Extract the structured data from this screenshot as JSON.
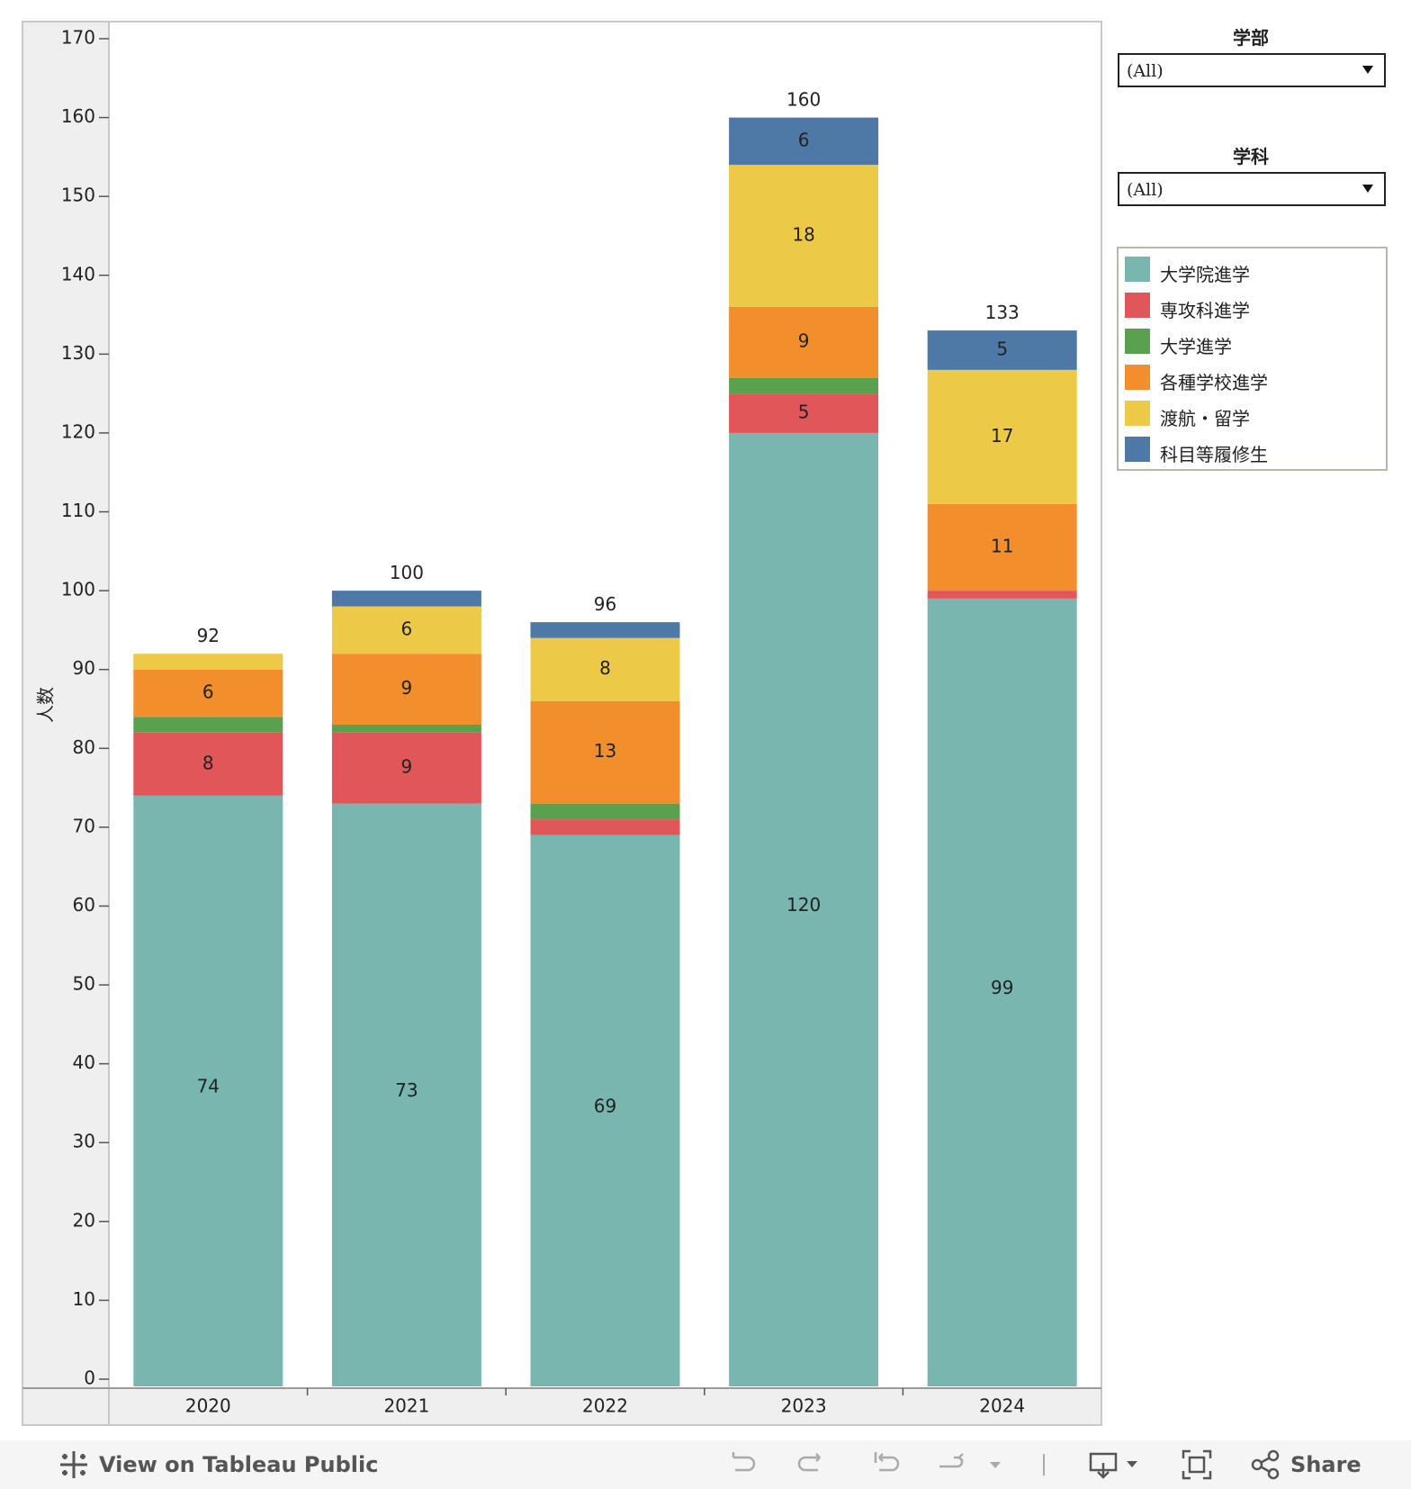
{
  "chart_data": {
    "type": "bar",
    "stacked": true,
    "categories": [
      "2020",
      "2021",
      "2022",
      "2023",
      "2024"
    ],
    "series": [
      {
        "name": "大学院進学",
        "color": "#79b6b0",
        "values": [
          74,
          73,
          69,
          120,
          99
        ]
      },
      {
        "name": "専攻科進学",
        "color": "#e15759",
        "values": [
          8,
          9,
          2,
          5,
          1
        ]
      },
      {
        "name": "大学進学",
        "color": "#59a14f",
        "values": [
          2,
          1,
          2,
          2,
          0
        ]
      },
      {
        "name": "各種学校進学",
        "color": "#f28e2b",
        "values": [
          6,
          9,
          13,
          9,
          11
        ]
      },
      {
        "name": "渡航・留学",
        "color": "#edc948",
        "values": [
          2,
          6,
          8,
          18,
          17
        ]
      },
      {
        "name": "科目等履修生",
        "color": "#4e79a7",
        "values": [
          0,
          2,
          2,
          6,
          5
        ]
      }
    ],
    "segment_labels": [
      [
        "74",
        "8",
        "",
        "6",
        "",
        ""
      ],
      [
        "73",
        "9",
        "",
        "9",
        "6",
        ""
      ],
      [
        "69",
        "",
        "",
        "13",
        "8",
        ""
      ],
      [
        "120",
        "5",
        "",
        "9",
        "18",
        "6"
      ],
      [
        "99",
        "",
        "",
        "11",
        "17",
        "5"
      ]
    ],
    "totals": [
      92,
      100,
      96,
      160,
      133
    ],
    "ylabel": "人数",
    "ylim": [
      0,
      170
    ],
    "yticks": [
      0,
      10,
      20,
      30,
      40,
      50,
      60,
      70,
      80,
      90,
      100,
      110,
      120,
      130,
      140,
      150,
      160,
      170
    ],
    "legend_position": "right"
  },
  "filters": {
    "faculty": {
      "title": "学部",
      "value": "(All)"
    },
    "department": {
      "title": "学科",
      "value": "(All)"
    }
  },
  "toolbar": {
    "view_label": "View on Tableau Public",
    "share_label": "Share",
    "icons": [
      "tableau-logo-icon",
      "undo-icon",
      "redo-icon",
      "revert-icon",
      "refresh-icon",
      "download-icon",
      "fullscreen-icon",
      "share-icon"
    ]
  }
}
